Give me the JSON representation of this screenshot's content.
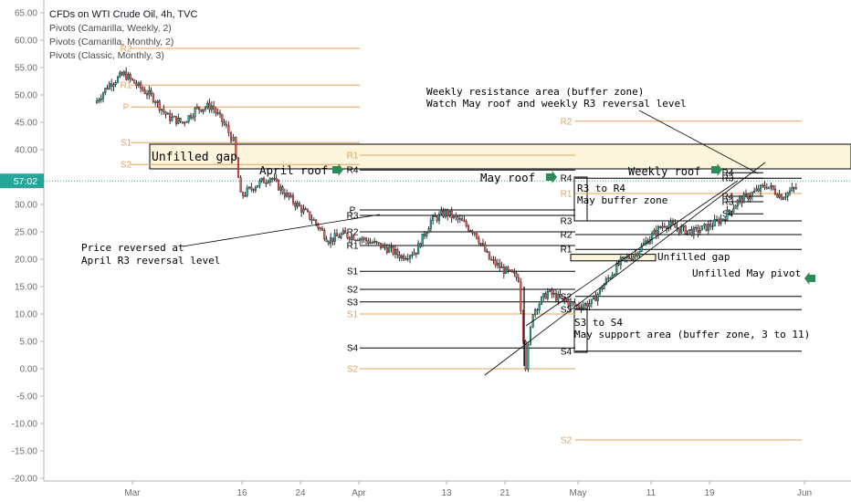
{
  "header": {
    "title": "CFDs on WTI Crude Oil, 4h, TVC",
    "indicators": [
      "Pivots (Camarilla, Weekly, 2)",
      "Pivots (Camarilla, Monthly, 2)",
      "Pivots (Classic, Monthly, 3)"
    ]
  },
  "price_tag": "57:02",
  "colors": {
    "up": "#26a69a",
    "down": "#ef5350",
    "pivot_orange": "#e8a15a",
    "pivot_black": "#000000",
    "arrow_green": "#2e8b57",
    "zone_fill": "#fdf5dc",
    "price_line": "#26a69a"
  },
  "chart_data": {
    "type": "candlestick",
    "ylim": [
      -20,
      65
    ],
    "y_ticks": [
      "65.00",
      "60.00",
      "55.00",
      "50.00",
      "45.00",
      "40.00",
      "35.00",
      "30.00",
      "25.00",
      "20.00",
      "15.00",
      "10.00",
      "5.00",
      "0.00",
      "-5.00",
      "-10.00",
      "-15.00",
      "-20.00"
    ],
    "x_ticks": [
      "Mar",
      "16",
      "24",
      "Apr",
      "13",
      "21",
      "May",
      "11",
      "19",
      "Jun"
    ],
    "price_path": [
      [
        "Feb 24",
        48.5
      ],
      [
        "Feb 26",
        52.0
      ],
      [
        "Feb 28",
        53.8
      ],
      [
        "Mar 2",
        51.5
      ],
      [
        "Mar 4",
        49.5
      ],
      [
        "Mar 6",
        46.0
      ],
      [
        "Mar 8",
        45.0
      ],
      [
        "Mar 10",
        47.5
      ],
      [
        "Mar 12",
        48.0
      ],
      [
        "Mar 14",
        44.0
      ],
      [
        "Mar 15",
        41.5
      ],
      [
        "Mar 16",
        31.5
      ],
      [
        "Mar 18",
        33.5
      ],
      [
        "Mar 20",
        35.0
      ],
      [
        "Mar 22",
        32.0
      ],
      [
        "Mar 24",
        29.5
      ],
      [
        "Mar 26",
        27.0
      ],
      [
        "Mar 28",
        23.5
      ],
      [
        "Mar 30",
        24.5
      ],
      [
        "Apr 1",
        24.0
      ],
      [
        "Apr 3",
        23.0
      ],
      [
        "Apr 5",
        22.0
      ],
      [
        "Apr 7",
        20.5
      ],
      [
        "Apr 9",
        21.5
      ],
      [
        "Apr 11",
        27.0
      ],
      [
        "Apr 13",
        28.5
      ],
      [
        "Apr 15",
        27.0
      ],
      [
        "Apr 17",
        25.0
      ],
      [
        "Apr 19",
        20.0
      ],
      [
        "Apr 21",
        18.0
      ],
      [
        "Apr 23",
        16.5
      ],
      [
        "Apr 24",
        0.5
      ],
      [
        "Apr 25",
        10.5
      ],
      [
        "Apr 27",
        14.0
      ],
      [
        "Apr 29",
        12.5
      ],
      [
        "May 1",
        11.5
      ],
      [
        "May 3",
        12.0
      ],
      [
        "May 5",
        16.0
      ],
      [
        "May 7",
        19.5
      ],
      [
        "May 9",
        21.0
      ],
      [
        "May 11",
        24.0
      ],
      [
        "May 13",
        26.5
      ],
      [
        "May 15",
        25.5
      ],
      [
        "May 17",
        25.0
      ],
      [
        "May 19",
        26.0
      ],
      [
        "May 21",
        27.5
      ],
      [
        "May 23",
        30.5
      ],
      [
        "May 25",
        32.0
      ],
      [
        "May 27",
        33.5
      ],
      [
        "May 29",
        31.5
      ],
      [
        "May 31",
        33.0
      ]
    ],
    "pivot_sets": [
      {
        "name": "Pivots (Camarilla, Monthly, 2)",
        "period": "March",
        "levels": [
          {
            "label": "R2",
            "value": 58.5,
            "color": "orange"
          },
          {
            "label": "R1",
            "value": 51.8,
            "color": "orange"
          },
          {
            "label": "P",
            "value": 47.8,
            "color": "orange"
          },
          {
            "label": "S1",
            "value": 41.3,
            "color": "orange"
          },
          {
            "label": "S2",
            "value": 37.3,
            "color": "orange"
          }
        ]
      },
      {
        "name": "Pivots (Classic, Monthly, 3)",
        "period": "April",
        "levels": [
          {
            "label": "R1",
            "value": 39.0,
            "color": "orange"
          },
          {
            "label": "R4",
            "value": 36.3,
            "color": "black"
          },
          {
            "label": "P",
            "value": 29.0,
            "color": "black"
          },
          {
            "label": "R3",
            "value": 28.0,
            "color": "black"
          },
          {
            "label": "R2",
            "value": 25.0,
            "color": "black"
          },
          {
            "label": "R1",
            "value": 22.5,
            "color": "black"
          },
          {
            "label": "S1",
            "value": 17.8,
            "color": "black"
          },
          {
            "label": "S2",
            "value": 14.5,
            "color": "black"
          },
          {
            "label": "S3",
            "value": 12.2,
            "color": "black"
          },
          {
            "label": "S1",
            "value": 10.0,
            "color": "orange"
          },
          {
            "label": "S4",
            "value": 3.8,
            "color": "black"
          },
          {
            "label": "S2",
            "value": 0.0,
            "color": "orange"
          }
        ]
      },
      {
        "name": "Pivots (Camarilla, Monthly, 2)",
        "period": "May",
        "levels": [
          {
            "label": "R2",
            "value": 45.2,
            "color": "orange"
          },
          {
            "label": "R4",
            "value": 34.8,
            "color": "black"
          },
          {
            "label": "R1",
            "value": 32.0,
            "color": "orange"
          },
          {
            "label": "R3",
            "value": 27.0,
            "color": "black"
          },
          {
            "label": "R2",
            "value": 24.5,
            "color": "black"
          },
          {
            "label": "R1",
            "value": 21.8,
            "color": "black"
          },
          {
            "label": "S2",
            "value": 13.2,
            "color": "black"
          },
          {
            "label": "S3",
            "value": 10.8,
            "color": "black"
          },
          {
            "label": "S4",
            "value": 3.2,
            "color": "black"
          },
          {
            "label": "S2",
            "value": -13.0,
            "color": "orange"
          }
        ]
      },
      {
        "name": "Pivots (Camarilla, Weekly, 2)",
        "period": "Last week of May",
        "levels": [
          {
            "label": "R4",
            "value": 35.8,
            "color": "black"
          },
          {
            "label": "R3",
            "value": 34.8,
            "color": "black"
          },
          {
            "label": "R4",
            "value": 31.5,
            "color": "black"
          },
          {
            "label": "R3",
            "value": 30.5,
            "color": "black"
          },
          {
            "label": "S4",
            "value": 28.3,
            "color": "black"
          }
        ]
      }
    ],
    "zones": [
      {
        "name": "upper-gap-zone",
        "from": 36.5,
        "to": 41.0
      },
      {
        "name": "unfilled-gap-may",
        "from": 19.7,
        "to": 20.9
      },
      {
        "name": "may-buffer-zone",
        "from": 27.0,
        "to": 35.0
      },
      {
        "name": "may-support-area",
        "from": 3.0,
        "to": 11.0
      }
    ],
    "annotations": {
      "unfilled_gap": "Unfilled gap",
      "april_roof": "April roof",
      "may_roof": "May roof",
      "weekly_roof": "Weekly roof",
      "weekly_resistance_1": "Weekly resistance area (buffer zone)",
      "weekly_resistance_2": "Watch May roof and weekly R3 reversal level",
      "r3_to_r4": "R3 to R4",
      "may_buffer_zone": "May buffer zone",
      "unfilled_gap_2": "Unfilled gap",
      "unfilled_may_pivot": "Unfilled May pivot",
      "price_reversed_1": "Price reversed at",
      "price_reversed_2": "April R3 reversal level",
      "s3_to_s4": "S3 to S4",
      "may_support": "May support area (buffer zone, 3 to 11)"
    }
  }
}
